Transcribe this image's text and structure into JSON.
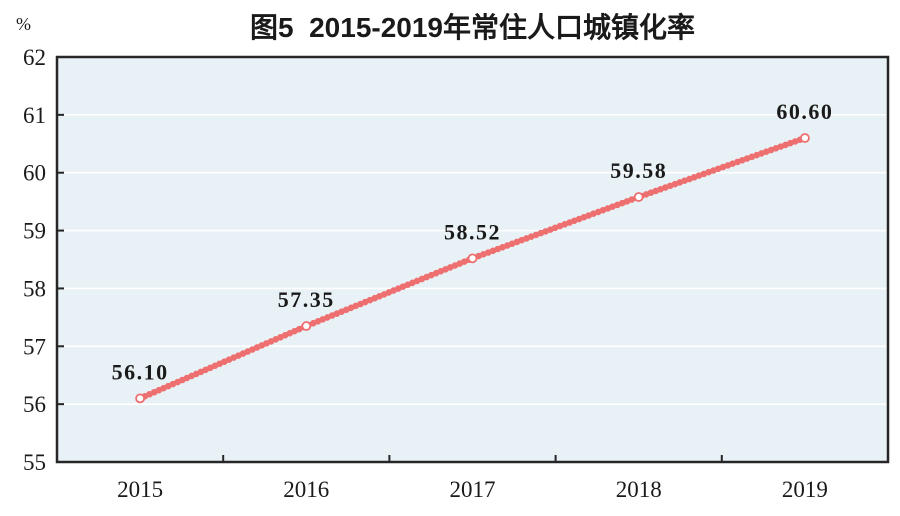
{
  "chart_data": {
    "type": "line",
    "title": "图5  2015-2019年常住人口城镇化率",
    "unit": "%",
    "categories": [
      "2015",
      "2016",
      "2017",
      "2018",
      "2019"
    ],
    "values": [
      56.1,
      57.35,
      58.52,
      59.58,
      60.6
    ],
    "point_labels": [
      "56.10",
      "57.35",
      "58.52",
      "59.58",
      "60.60"
    ],
    "ylim": [
      55,
      62
    ],
    "y_tick_labels": [
      "55",
      "56",
      "57",
      "58",
      "59",
      "60",
      "61",
      "62"
    ],
    "grid": "horizontal",
    "legend": "none",
    "colors": {
      "line": "#ee6f6f",
      "marker_fill": "#ffffff",
      "plot_background": "#e8f1f5",
      "gridline": "#ffffff",
      "axis": "#262626",
      "text": "#1a1a1a"
    }
  }
}
